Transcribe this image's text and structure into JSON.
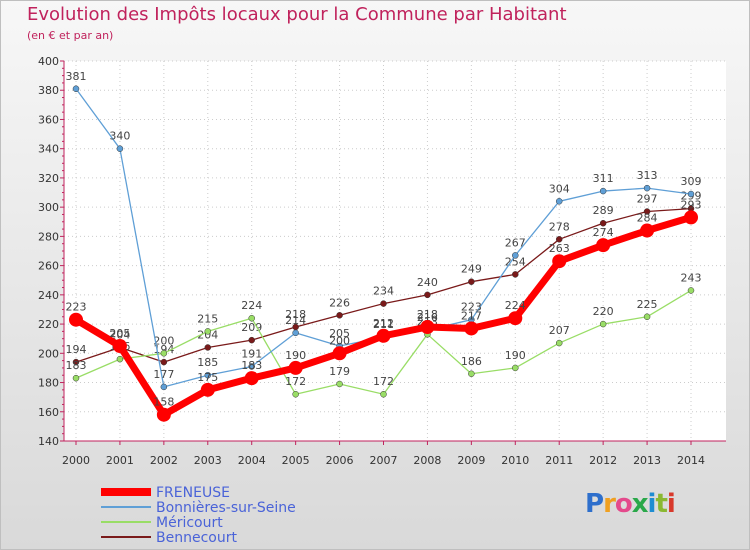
{
  "chart_data": {
    "type": "line",
    "title": "Evolution des Impôts locaux pour la Commune par Habitant",
    "subtitle": "(en € et par an)",
    "xlabel": "",
    "ylabel": "",
    "ylim": [
      140,
      400
    ],
    "yticks": [
      140,
      160,
      180,
      200,
      220,
      240,
      260,
      280,
      300,
      320,
      340,
      360,
      380,
      400
    ],
    "categories": [
      "2000",
      "2001",
      "2002",
      "2003",
      "2004",
      "2005",
      "2006",
      "2007",
      "2008",
      "2009",
      "2010",
      "2011",
      "2012",
      "2013",
      "2014"
    ],
    "series": [
      {
        "name": "Bennecourt",
        "color": "#7a1a1a",
        "values": [
          194,
          204,
          194,
          204,
          209,
          218,
          226,
          234,
          240,
          249,
          254,
          278,
          289,
          297,
          299
        ]
      },
      {
        "name": "Méricourt",
        "color": "#99dd66",
        "values": [
          183,
          196,
          200,
          215,
          224,
          172,
          179,
          172,
          213,
          186,
          190,
          207,
          220,
          225,
          243
        ]
      },
      {
        "name": "Bonnières-sur-Seine",
        "color": "#5f9fd6",
        "values": [
          381,
          340,
          177,
          185,
          191,
          214,
          205,
          211,
          216,
          223,
          267,
          304,
          311,
          313,
          309
        ]
      },
      {
        "name": "FRENEUSE",
        "color": "#ff0000",
        "values": [
          223,
          205,
          158,
          175,
          183,
          190,
          200,
          212,
          218,
          217,
          224,
          263,
          274,
          284,
          293
        ]
      }
    ],
    "legend": [
      "FRENEUSE",
      "Bonnières-sur-Seine",
      "Méricourt",
      "Bennecourt"
    ]
  },
  "branding": {
    "logo_text": "Proxiti"
  }
}
